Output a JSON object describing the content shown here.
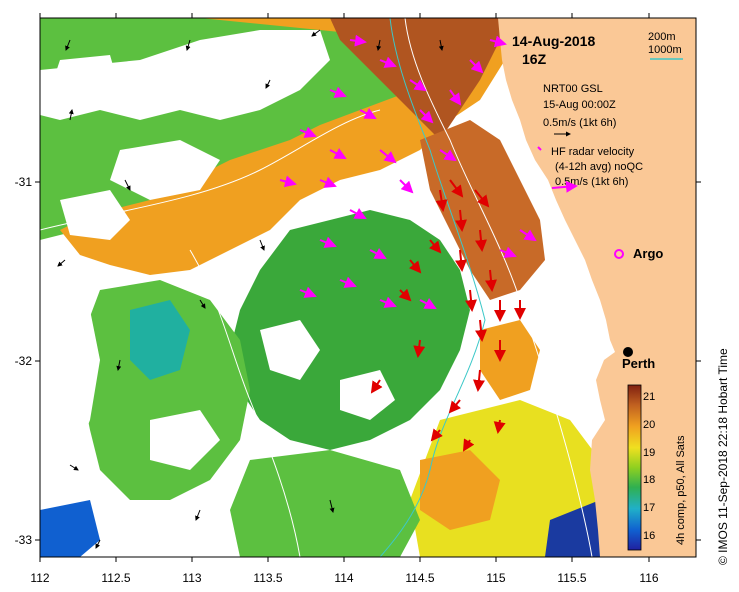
{
  "map": {
    "title_date": "14-Aug-2018",
    "title_time": "16Z",
    "lon_ticks": [
      "112",
      "112.5",
      "113",
      "113.5",
      "114",
      "114.5",
      "115",
      "115.5",
      "116"
    ],
    "lat_ticks": [
      "-31",
      "-32",
      "-33"
    ],
    "lon_range": [
      112,
      116.3
    ],
    "lat_range": [
      -33.1,
      -30.1
    ]
  },
  "isobath_legend": {
    "depth1": "200m",
    "depth2": "1000m",
    "color1": "#ffffff",
    "color2": "#3cc8c8"
  },
  "vector_legend": {
    "gsl_title": "NRT00 GSL",
    "gsl_date": "15-Aug 00:00Z",
    "gsl_scale": "0.5m/s (1kt 6h)",
    "hf_title": "HF radar velocity",
    "hf_detail": "(4-12h avg) noQC",
    "hf_scale": "0.5m/s (1kt 6h)",
    "gsl_color": "#000000",
    "hf_color": "#ff00ff",
    "hf_color2": "#ff0000"
  },
  "places": {
    "argo": "Argo",
    "perth": "Perth"
  },
  "colorbar": {
    "ticks": [
      "21",
      "20",
      "19",
      "18",
      "17",
      "16"
    ],
    "label": "4h comp, p50, All Sats",
    "range": [
      15.5,
      21.5
    ]
  },
  "credit": "© IMOS 11-Sep-2018 22:18 Hobart Time",
  "colors": {
    "land": "#fac896",
    "ocean_blank": "#ffffff"
  }
}
